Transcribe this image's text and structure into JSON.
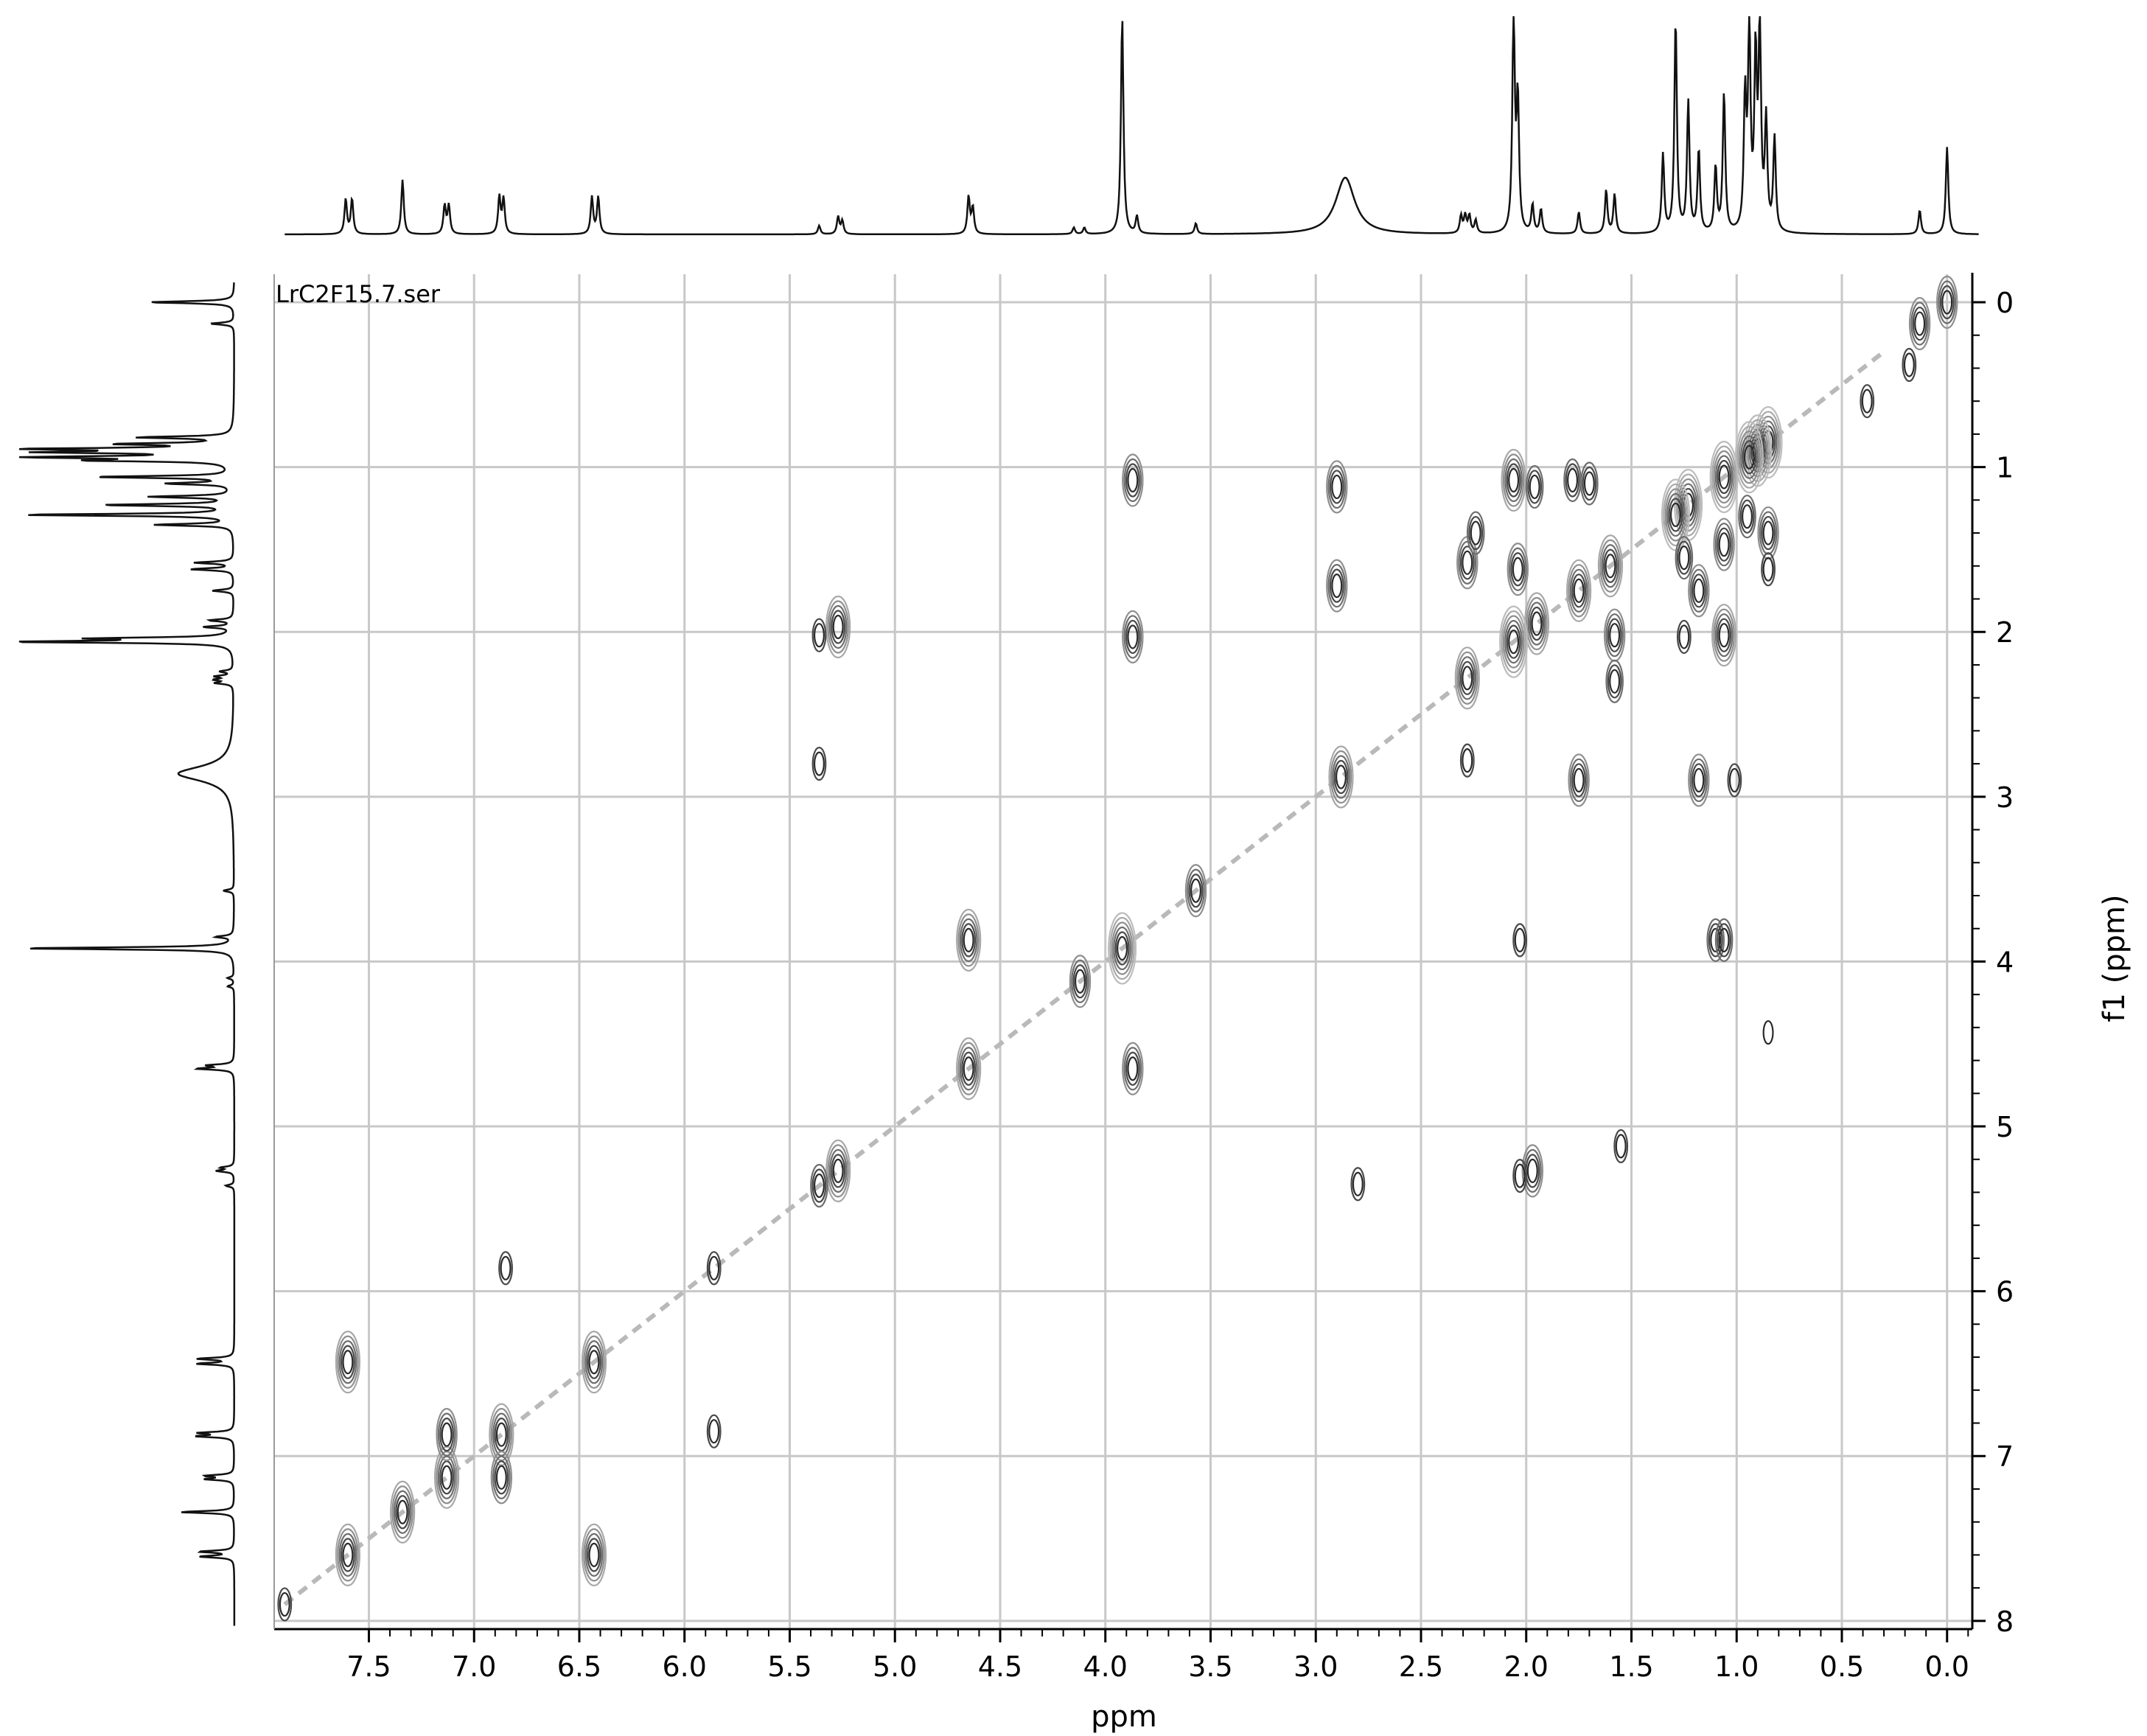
{
  "chart_data": {
    "type": "contour",
    "dataset_label": "LrC2F15.7.ser",
    "xlabel": "ppm",
    "ylabel": "f1 (ppm)",
    "xlim": [
      7.95,
      -0.12
    ],
    "ylim": [
      -0.17,
      8.05
    ],
    "x_ticks": [
      "7.5",
      "7.0",
      "6.5",
      "6.0",
      "5.5",
      "5.0",
      "4.5",
      "4.0",
      "3.5",
      "3.0",
      "2.5",
      "2.0",
      "1.5",
      "1.0",
      "0.5",
      "0.0"
    ],
    "y_ticks": [
      "0",
      "1",
      "2",
      "3",
      "4",
      "5",
      "6",
      "7",
      "8"
    ],
    "grid": true,
    "projection_peaks": [
      {
        "ppm": 7.61,
        "h": 0.16
      },
      {
        "ppm": 7.58,
        "h": 0.16
      },
      {
        "ppm": 7.34,
        "h": 0.25
      },
      {
        "ppm": 7.14,
        "h": 0.13
      },
      {
        "ppm": 7.12,
        "h": 0.13
      },
      {
        "ppm": 6.88,
        "h": 0.17
      },
      {
        "ppm": 6.86,
        "h": 0.16
      },
      {
        "ppm": 6.44,
        "h": 0.17
      },
      {
        "ppm": 6.41,
        "h": 0.17
      },
      {
        "ppm": 5.36,
        "h": 0.04
      },
      {
        "ppm": 5.27,
        "h": 0.08
      },
      {
        "ppm": 5.25,
        "h": 0.06
      },
      {
        "ppm": 4.65,
        "h": 0.17
      },
      {
        "ppm": 4.63,
        "h": 0.12
      },
      {
        "ppm": 4.15,
        "h": 0.03
      },
      {
        "ppm": 4.1,
        "h": 0.03
      },
      {
        "ppm": 3.92,
        "h": 1.0
      },
      {
        "ppm": 3.85,
        "h": 0.08
      },
      {
        "ppm": 3.57,
        "h": 0.05
      },
      {
        "ppm": 2.86,
        "h": 0.26
      },
      {
        "ppm": 2.31,
        "h": 0.08
      },
      {
        "ppm": 2.29,
        "h": 0.08
      },
      {
        "ppm": 2.27,
        "h": 0.08
      },
      {
        "ppm": 2.24,
        "h": 0.06
      },
      {
        "ppm": 2.06,
        "h": 1.0
      },
      {
        "ppm": 2.04,
        "h": 0.6
      },
      {
        "ppm": 1.97,
        "h": 0.13
      },
      {
        "ppm": 1.93,
        "h": 0.11
      },
      {
        "ppm": 1.75,
        "h": 0.1
      },
      {
        "ppm": 1.62,
        "h": 0.2
      },
      {
        "ppm": 1.58,
        "h": 0.18
      },
      {
        "ppm": 1.35,
        "h": 0.36
      },
      {
        "ppm": 1.29,
        "h": 0.98
      },
      {
        "ppm": 1.23,
        "h": 0.6
      },
      {
        "ppm": 1.18,
        "h": 0.38
      },
      {
        "ppm": 1.1,
        "h": 0.3
      },
      {
        "ppm": 1.06,
        "h": 0.64
      },
      {
        "ppm": 0.96,
        "h": 0.6
      },
      {
        "ppm": 0.94,
        "h": 0.93
      },
      {
        "ppm": 0.91,
        "h": 0.78
      },
      {
        "ppm": 0.89,
        "h": 0.92
      },
      {
        "ppm": 0.86,
        "h": 0.5
      },
      {
        "ppm": 0.82,
        "h": 0.43
      },
      {
        "ppm": 0.13,
        "h": 0.11
      },
      {
        "ppm": 0.0,
        "h": 0.4
      }
    ],
    "cross_peaks": [
      {
        "x": 0.0,
        "y": 0.0,
        "i": 3
      },
      {
        "x": 0.13,
        "y": 0.13,
        "i": 3
      },
      {
        "x": 0.85,
        "y": 0.85,
        "i": 5
      },
      {
        "x": 0.9,
        "y": 0.9,
        "i": 5
      },
      {
        "x": 0.94,
        "y": 0.94,
        "i": 5
      },
      {
        "x": 1.06,
        "y": 1.06,
        "i": 5
      },
      {
        "x": 1.23,
        "y": 1.23,
        "i": 5
      },
      {
        "x": 1.29,
        "y": 1.29,
        "i": 5
      },
      {
        "x": 1.6,
        "y": 1.6,
        "i": 4
      },
      {
        "x": 1.75,
        "y": 1.75,
        "i": 4
      },
      {
        "x": 1.95,
        "y": 1.95,
        "i": 4
      },
      {
        "x": 2.06,
        "y": 2.06,
        "i": 5
      },
      {
        "x": 2.28,
        "y": 2.28,
        "i": 4
      },
      {
        "x": 2.88,
        "y": 2.88,
        "i": 4
      },
      {
        "x": 3.57,
        "y": 3.57,
        "i": 3
      },
      {
        "x": 3.92,
        "y": 3.92,
        "i": 5
      },
      {
        "x": 4.12,
        "y": 4.12,
        "i": 3
      },
      {
        "x": 4.65,
        "y": 4.65,
        "i": 4
      },
      {
        "x": 5.27,
        "y": 5.27,
        "i": 4
      },
      {
        "x": 5.36,
        "y": 5.36,
        "i": 2
      },
      {
        "x": 5.86,
        "y": 5.86,
        "i": 1
      },
      {
        "x": 6.43,
        "y": 6.43,
        "i": 4
      },
      {
        "x": 6.87,
        "y": 6.87,
        "i": 4
      },
      {
        "x": 7.13,
        "y": 7.13,
        "i": 4
      },
      {
        "x": 7.34,
        "y": 7.34,
        "i": 4
      },
      {
        "x": 7.6,
        "y": 7.6,
        "i": 4
      },
      {
        "x": 7.9,
        "y": 7.9,
        "i": 1
      },
      {
        "x": 7.6,
        "y": 6.43,
        "i": 4
      },
      {
        "x": 6.43,
        "y": 7.6,
        "i": 4
      },
      {
        "x": 7.13,
        "y": 6.87,
        "i": 3
      },
      {
        "x": 6.87,
        "y": 7.13,
        "i": 3
      },
      {
        "x": 6.85,
        "y": 5.86,
        "i": 1
      },
      {
        "x": 5.86,
        "y": 6.85,
        "i": 1
      },
      {
        "x": 5.27,
        "y": 1.97,
        "i": 4
      },
      {
        "x": 5.36,
        "y": 2.02,
        "i": 1
      },
      {
        "x": 5.36,
        "y": 2.8,
        "i": 1
      },
      {
        "x": 1.97,
        "y": 5.27,
        "i": 3
      },
      {
        "x": 2.03,
        "y": 5.3,
        "i": 1
      },
      {
        "x": 2.8,
        "y": 5.35,
        "i": 1
      },
      {
        "x": 1.55,
        "y": 5.12,
        "i": 1
      },
      {
        "x": 4.65,
        "y": 3.87,
        "i": 4
      },
      {
        "x": 3.87,
        "y": 4.65,
        "i": 3
      },
      {
        "x": 3.87,
        "y": 2.03,
        "i": 3
      },
      {
        "x": 3.87,
        "y": 1.08,
        "i": 3
      },
      {
        "x": 2.03,
        "y": 3.87,
        "i": 1
      },
      {
        "x": 1.1,
        "y": 3.87,
        "i": 2
      },
      {
        "x": 1.06,
        "y": 3.87,
        "i": 2
      },
      {
        "x": 2.9,
        "y": 1.12,
        "i": 3
      },
      {
        "x": 2.9,
        "y": 1.72,
        "i": 3
      },
      {
        "x": 1.75,
        "y": 2.9,
        "i": 3
      },
      {
        "x": 1.18,
        "y": 2.9,
        "i": 3
      },
      {
        "x": 1.01,
        "y": 2.9,
        "i": 1
      },
      {
        "x": 2.28,
        "y": 1.58,
        "i": 3
      },
      {
        "x": 2.24,
        "y": 1.4,
        "i": 2
      },
      {
        "x": 2.28,
        "y": 2.78,
        "i": 1
      },
      {
        "x": 2.06,
        "y": 1.08,
        "i": 4
      },
      {
        "x": 2.04,
        "y": 1.62,
        "i": 3
      },
      {
        "x": 1.96,
        "y": 1.12,
        "i": 2
      },
      {
        "x": 1.58,
        "y": 2.02,
        "i": 3
      },
      {
        "x": 1.58,
        "y": 2.3,
        "i": 2
      },
      {
        "x": 1.78,
        "y": 1.08,
        "i": 2
      },
      {
        "x": 1.7,
        "y": 1.1,
        "i": 2
      },
      {
        "x": 1.06,
        "y": 2.02,
        "i": 4
      },
      {
        "x": 1.06,
        "y": 1.47,
        "i": 3
      },
      {
        "x": 1.18,
        "y": 1.75,
        "i": 3
      },
      {
        "x": 0.85,
        "y": 1.4,
        "i": 3
      },
      {
        "x": 1.25,
        "y": 2.03,
        "i": 1
      },
      {
        "x": 0.85,
        "y": 1.62,
        "i": 1
      },
      {
        "x": 1.25,
        "y": 1.55,
        "i": 2
      },
      {
        "x": 0.95,
        "y": 1.3,
        "i": 2
      },
      {
        "x": 0.18,
        "y": 0.38,
        "i": 1
      },
      {
        "x": 0.38,
        "y": 0.6,
        "i": 1
      },
      {
        "x": 0.85,
        "y": 4.43,
        "i": 0
      }
    ]
  }
}
